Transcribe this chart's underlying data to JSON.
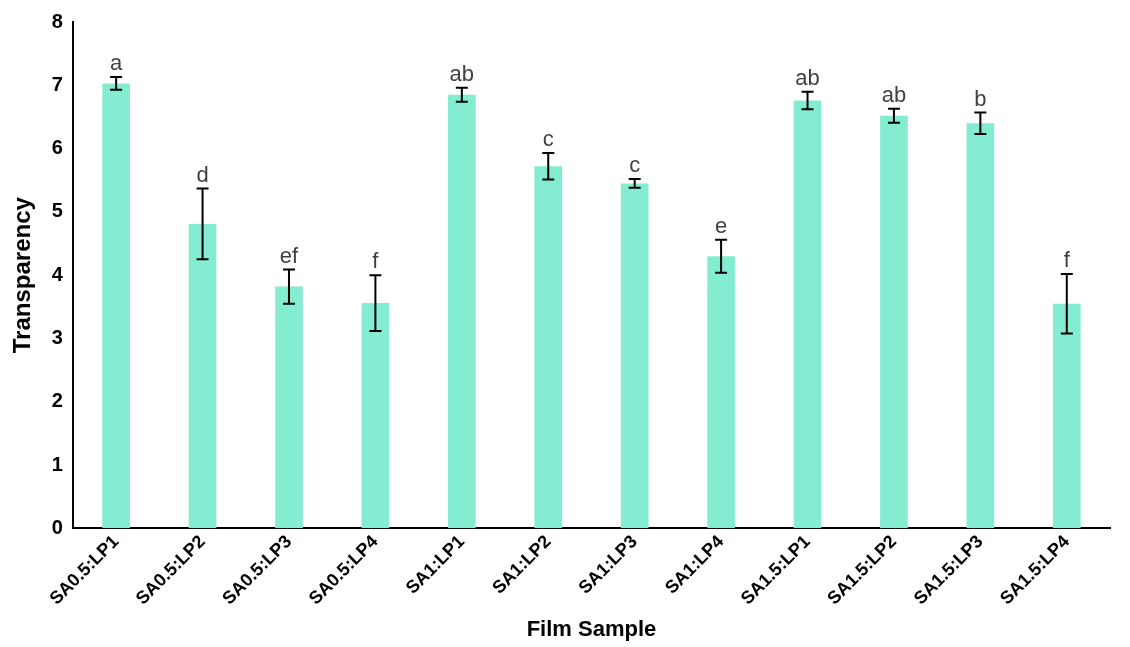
{
  "chart_data": {
    "type": "bar",
    "xlabel": "Film Sample",
    "ylabel": "Transparency",
    "categories": [
      "SA0.5:LP1",
      "SA0.5:LP2",
      "SA0.5:LP3",
      "SA0.5:LP4",
      "SA1:LP1",
      "SA1:LP2",
      "SA1:LP3",
      "SA1:LP4",
      "SA1.5:LP1",
      "SA1.5:LP2",
      "SA1.5:LP3",
      "SA1.5:LP4"
    ],
    "values": [
      7.03,
      4.81,
      3.82,
      3.56,
      6.85,
      5.72,
      5.45,
      4.3,
      6.76,
      6.52,
      6.4,
      3.55
    ],
    "errors": [
      0.1,
      0.56,
      0.27,
      0.44,
      0.11,
      0.21,
      0.07,
      0.26,
      0.14,
      0.11,
      0.17,
      0.47
    ],
    "value_labels": [
      "a",
      "d",
      "ef",
      "f",
      "ab",
      "c",
      "c",
      "e",
      "ab",
      "ab",
      "b",
      "f"
    ],
    "color": "#84ecd0",
    "ylim": [
      0,
      8
    ],
    "yticks": [
      0,
      1,
      2,
      3,
      4,
      5,
      6,
      7,
      8
    ],
    "grid": false,
    "legend": false
  }
}
